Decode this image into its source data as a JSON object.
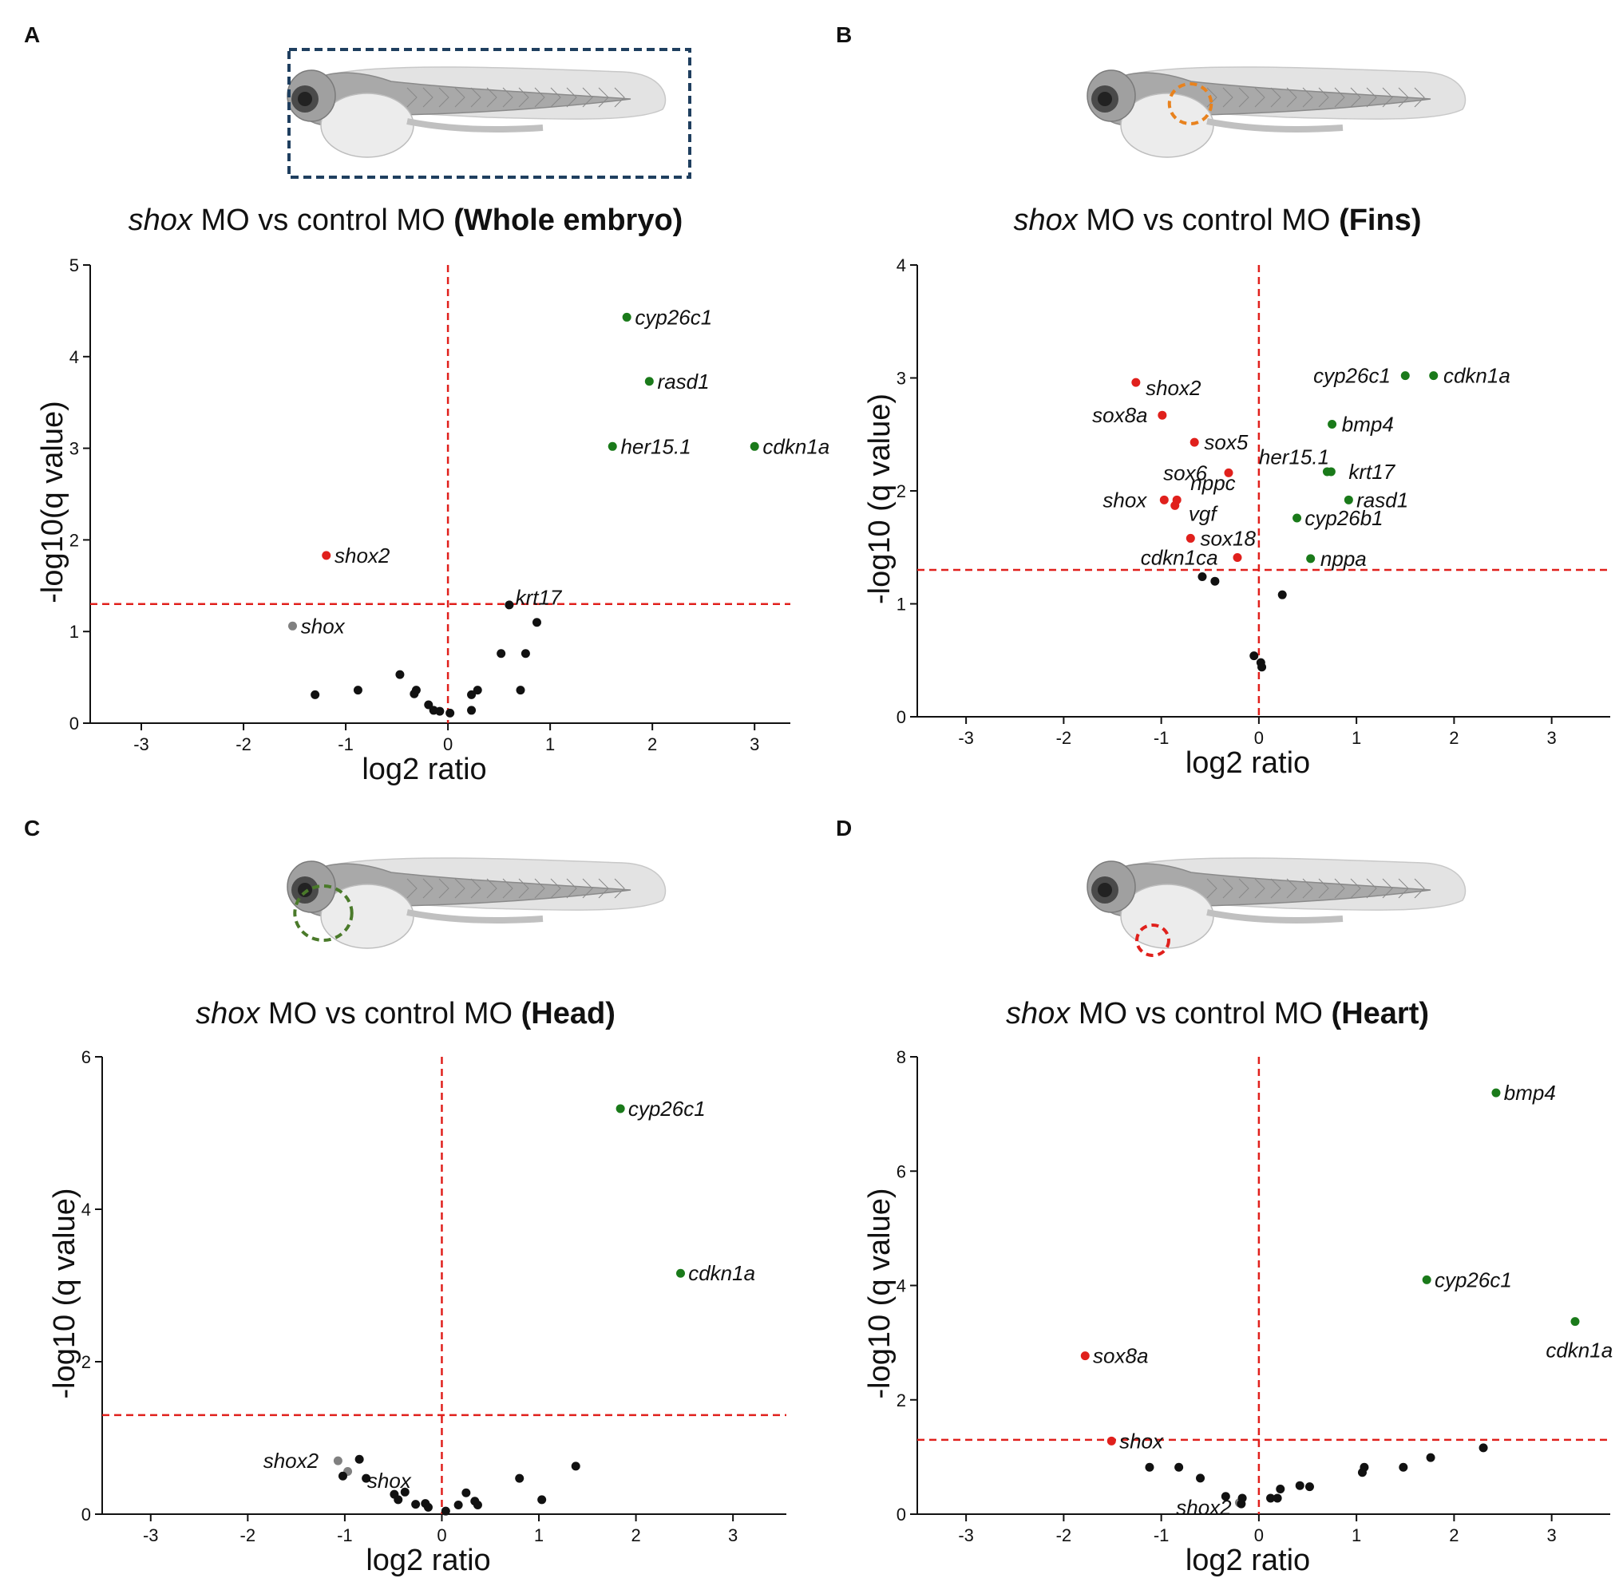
{
  "figure": {
    "colors": {
      "up": "#1a7a1a",
      "down": "#e0201c",
      "ns_highlight": "#808080",
      "ns": "#111111",
      "threshold": "#e0201c",
      "whole_marker": "#1f3f5f",
      "fins_marker": "#e8821e",
      "head_marker": "#4a7a2a",
      "heart_marker": "#e0201c"
    }
  },
  "chart_data": [
    {
      "panel": "A",
      "type": "scatter",
      "title_italic": "shox",
      "title_middle": " MO vs control MO ",
      "title_bold": "(Whole embryo)",
      "xlabel": "log2 ratio",
      "ylabel": "-log10(q value)",
      "xlim": [
        -3.5,
        3.35
      ],
      "ylim": [
        0,
        5
      ],
      "xticks": [
        -3,
        -2,
        -1,
        0,
        1,
        2,
        3
      ],
      "yticks": [
        0,
        1,
        2,
        3,
        4,
        5
      ],
      "threshold_y": 1.3,
      "threshold_x": 0,
      "points": [
        {
          "x": 1.75,
          "y": 4.43,
          "cls": "up",
          "label": "cyp26c1",
          "lx": 0.08,
          "ly": 0.0,
          "anchor": "start"
        },
        {
          "x": 1.97,
          "y": 3.73,
          "cls": "up",
          "label": "rasd1",
          "lx": 0.08,
          "ly": 0.0,
          "anchor": "start"
        },
        {
          "x": 1.61,
          "y": 3.02,
          "cls": "up",
          "label": "her15.1",
          "lx": 0.08,
          "ly": 0.0,
          "anchor": "start"
        },
        {
          "x": 3.0,
          "y": 3.02,
          "cls": "up",
          "label": "cdkn1a",
          "lx": 0.08,
          "ly": 0.0,
          "anchor": "start"
        },
        {
          "x": -1.19,
          "y": 1.83,
          "cls": "down",
          "label": "shox2",
          "lx": 0.08,
          "ly": 0.0,
          "anchor": "start"
        },
        {
          "x": -1.52,
          "y": 1.06,
          "cls": "ns_highlight",
          "label": "shox",
          "lx": 0.08,
          "ly": 0.0,
          "anchor": "start"
        },
        {
          "x": 0.6,
          "y": 1.29,
          "cls": "ns",
          "label": "krt17",
          "lx": 0.06,
          "ly": 0.08,
          "anchor": "start"
        },
        {
          "x": 0.87,
          "y": 1.1,
          "cls": "ns"
        },
        {
          "x": 0.52,
          "y": 0.76,
          "cls": "ns"
        },
        {
          "x": 0.76,
          "y": 0.76,
          "cls": "ns"
        },
        {
          "x": -0.47,
          "y": 0.53,
          "cls": "ns"
        },
        {
          "x": -0.88,
          "y": 0.36,
          "cls": "ns"
        },
        {
          "x": -1.3,
          "y": 0.31,
          "cls": "ns"
        },
        {
          "x": -0.31,
          "y": 0.36,
          "cls": "ns"
        },
        {
          "x": -0.33,
          "y": 0.32,
          "cls": "ns"
        },
        {
          "x": 0.29,
          "y": 0.36,
          "cls": "ns"
        },
        {
          "x": 0.23,
          "y": 0.31,
          "cls": "ns"
        },
        {
          "x": 0.71,
          "y": 0.36,
          "cls": "ns"
        },
        {
          "x": -0.19,
          "y": 0.2,
          "cls": "ns"
        },
        {
          "x": -0.14,
          "y": 0.14,
          "cls": "ns"
        },
        {
          "x": -0.08,
          "y": 0.13,
          "cls": "ns"
        },
        {
          "x": 0.02,
          "y": 0.11,
          "cls": "ns"
        },
        {
          "x": 0.23,
          "y": 0.14,
          "cls": "ns"
        }
      ]
    },
    {
      "panel": "B",
      "type": "scatter",
      "title_italic": "shox",
      "title_middle": " MO vs control MO ",
      "title_bold": "(Fins)",
      "xlabel": "log2 ratio",
      "ylabel": "-log10 (q value)",
      "xlim": [
        -3.5,
        3.6
      ],
      "ylim": [
        0,
        4
      ],
      "xticks": [
        -3,
        -2,
        -1,
        0,
        1,
        2,
        3
      ],
      "yticks": [
        0,
        1,
        2,
        3,
        4
      ],
      "threshold_y": 1.3,
      "threshold_x": 0,
      "points": [
        {
          "x": -1.26,
          "y": 2.96,
          "cls": "down",
          "label": "shox2",
          "lx": 0.1,
          "ly": -0.05,
          "anchor": "start"
        },
        {
          "x": -0.99,
          "y": 2.67,
          "cls": "down",
          "label": "sox8a",
          "lx": -0.15,
          "ly": 0.0,
          "anchor": "end"
        },
        {
          "x": -0.66,
          "y": 2.43,
          "cls": "down",
          "label": "sox5",
          "lx": 0.1,
          "ly": 0.0,
          "anchor": "start"
        },
        {
          "x": -0.31,
          "y": 2.16,
          "cls": "down",
          "label": "sox6",
          "lx": -0.22,
          "ly": 0.0,
          "anchor": "end"
        },
        {
          "x": -0.97,
          "y": 1.92,
          "cls": "down",
          "label": "shox",
          "lx": -0.18,
          "ly": 0.0,
          "anchor": "end"
        },
        {
          "x": -0.84,
          "y": 1.92,
          "cls": "down",
          "label": "nppc",
          "lx": 0.14,
          "ly": 0.15,
          "anchor": "start"
        },
        {
          "x": -0.86,
          "y": 1.87,
          "cls": "down",
          "label": "vgf",
          "lx": 0.14,
          "ly": -0.07,
          "anchor": "start"
        },
        {
          "x": -0.7,
          "y": 1.58,
          "cls": "down",
          "label": "sox18",
          "lx": 0.1,
          "ly": 0.0,
          "anchor": "start"
        },
        {
          "x": -0.22,
          "y": 1.41,
          "cls": "down",
          "label": "cdkn1ca",
          "lx": -0.2,
          "ly": 0.0,
          "anchor": "end"
        },
        {
          "x": 1.5,
          "y": 3.02,
          "cls": "up",
          "label": "cyp26c1",
          "lx": -0.15,
          "ly": 0.0,
          "anchor": "end"
        },
        {
          "x": 1.79,
          "y": 3.02,
          "cls": "up",
          "label": "cdkn1a",
          "lx": 0.1,
          "ly": 0.0,
          "anchor": "start"
        },
        {
          "x": 0.75,
          "y": 2.59,
          "cls": "up",
          "label": "bmp4",
          "lx": 0.1,
          "ly": 0.0,
          "anchor": "start"
        },
        {
          "x": 0.7,
          "y": 2.17,
          "cls": "up",
          "label": "her15.1",
          "lx": -0.7,
          "ly": 0.13,
          "anchor": "start"
        },
        {
          "x": 0.74,
          "y": 2.17,
          "cls": "up",
          "label": "krt17",
          "lx": 0.18,
          "ly": 0.0,
          "anchor": "start"
        },
        {
          "x": 0.92,
          "y": 1.92,
          "cls": "up",
          "label": "rasd1",
          "lx": 0.08,
          "ly": 0.0,
          "anchor": "start"
        },
        {
          "x": 0.39,
          "y": 1.76,
          "cls": "up",
          "label": "cyp26b1",
          "lx": 0.08,
          "ly": 0.0,
          "anchor": "start"
        },
        {
          "x": 0.53,
          "y": 1.4,
          "cls": "up",
          "label": "nppa",
          "lx": 0.1,
          "ly": 0.0,
          "anchor": "start"
        },
        {
          "x": -0.58,
          "y": 1.24,
          "cls": "ns"
        },
        {
          "x": -0.45,
          "y": 1.2,
          "cls": "ns"
        },
        {
          "x": 0.24,
          "y": 1.08,
          "cls": "ns"
        },
        {
          "x": -0.05,
          "y": 0.54,
          "cls": "ns"
        },
        {
          "x": 0.02,
          "y": 0.48,
          "cls": "ns"
        },
        {
          "x": 0.03,
          "y": 0.44,
          "cls": "ns"
        }
      ]
    },
    {
      "panel": "C",
      "type": "scatter",
      "title_italic": "shox",
      "title_middle": " MO vs control MO ",
      "title_bold": "(Head)",
      "xlabel": "log2 ratio",
      "ylabel": "-log10 (q value)",
      "xlim": [
        -3.5,
        3.55
      ],
      "ylim": [
        0,
        6
      ],
      "xticks": [
        -3,
        -2,
        -1,
        0,
        1,
        2,
        3
      ],
      "yticks": [
        0,
        2,
        4,
        6
      ],
      "threshold_y": 1.3,
      "threshold_x": 0,
      "points": [
        {
          "x": 1.84,
          "y": 5.32,
          "cls": "up",
          "label": "cyp26c1",
          "lx": 0.08,
          "ly": 0.0,
          "anchor": "start"
        },
        {
          "x": 2.46,
          "y": 3.16,
          "cls": "up",
          "label": "cdkn1a",
          "lx": 0.08,
          "ly": 0.0,
          "anchor": "start"
        },
        {
          "x": -1.07,
          "y": 0.7,
          "cls": "ns_highlight",
          "label": "shox2",
          "lx": -0.2,
          "ly": 0.0,
          "anchor": "end"
        },
        {
          "x": -0.97,
          "y": 0.56,
          "cls": "ns_highlight",
          "label": "shox",
          "lx": 0.2,
          "ly": -0.12,
          "anchor": "start"
        },
        {
          "x": -0.85,
          "y": 0.72,
          "cls": "ns"
        },
        {
          "x": -1.02,
          "y": 0.5,
          "cls": "ns"
        },
        {
          "x": -0.78,
          "y": 0.47,
          "cls": "ns"
        },
        {
          "x": -0.49,
          "y": 0.26,
          "cls": "ns"
        },
        {
          "x": -0.38,
          "y": 0.29,
          "cls": "ns"
        },
        {
          "x": -0.45,
          "y": 0.19,
          "cls": "ns"
        },
        {
          "x": -0.27,
          "y": 0.13,
          "cls": "ns"
        },
        {
          "x": -0.17,
          "y": 0.14,
          "cls": "ns"
        },
        {
          "x": -0.14,
          "y": 0.09,
          "cls": "ns"
        },
        {
          "x": 0.04,
          "y": 0.04,
          "cls": "ns"
        },
        {
          "x": 0.17,
          "y": 0.12,
          "cls": "ns"
        },
        {
          "x": 0.25,
          "y": 0.28,
          "cls": "ns"
        },
        {
          "x": 0.34,
          "y": 0.17,
          "cls": "ns"
        },
        {
          "x": 0.37,
          "y": 0.12,
          "cls": "ns"
        },
        {
          "x": 0.8,
          "y": 0.47,
          "cls": "ns"
        },
        {
          "x": 1.03,
          "y": 0.19,
          "cls": "ns"
        },
        {
          "x": 1.38,
          "y": 0.63,
          "cls": "ns"
        }
      ]
    },
    {
      "panel": "D",
      "type": "scatter",
      "title_italic": "shox",
      "title_middle": " MO vs control MO ",
      "title_bold": "(Heart)",
      "xlabel": "log2 ratio",
      "ylabel": "-log10 (q value)",
      "xlim": [
        -3.5,
        3.6
      ],
      "ylim": [
        0,
        8
      ],
      "xticks": [
        -3,
        -2,
        -1,
        0,
        1,
        2,
        3
      ],
      "yticks": [
        0,
        2,
        4,
        6,
        8
      ],
      "threshold_y": 1.3,
      "threshold_x": 0,
      "points": [
        {
          "x": 2.43,
          "y": 7.37,
          "cls": "up",
          "label": "bmp4",
          "lx": 0.08,
          "ly": 0.0,
          "anchor": "start"
        },
        {
          "x": 1.72,
          "y": 4.1,
          "cls": "up",
          "label": "cyp26c1",
          "lx": 0.08,
          "ly": 0.0,
          "anchor": "start"
        },
        {
          "x": 3.24,
          "y": 3.37,
          "cls": "up",
          "label": "cdkn1a",
          "lx": -0.3,
          "ly": -0.5,
          "anchor": "start"
        },
        {
          "x": -1.78,
          "y": 2.77,
          "cls": "down",
          "label": "sox8a",
          "lx": 0.08,
          "ly": 0.0,
          "anchor": "start"
        },
        {
          "x": -1.51,
          "y": 1.28,
          "cls": "down",
          "label": "shox",
          "lx": 0.08,
          "ly": 0.0,
          "anchor": "start"
        },
        {
          "x": -0.2,
          "y": 0.2,
          "cls": "ns_highlight",
          "label": "shox2",
          "lx": -0.08,
          "ly": -0.08,
          "anchor": "end"
        },
        {
          "x": -1.12,
          "y": 0.82,
          "cls": "ns"
        },
        {
          "x": -0.82,
          "y": 0.82,
          "cls": "ns"
        },
        {
          "x": -0.6,
          "y": 0.63,
          "cls": "ns"
        },
        {
          "x": -0.34,
          "y": 0.31,
          "cls": "ns"
        },
        {
          "x": -0.17,
          "y": 0.28,
          "cls": "ns"
        },
        {
          "x": -0.18,
          "y": 0.18,
          "cls": "ns"
        },
        {
          "x": 0.12,
          "y": 0.28,
          "cls": "ns"
        },
        {
          "x": 0.19,
          "y": 0.28,
          "cls": "ns"
        },
        {
          "x": 0.22,
          "y": 0.44,
          "cls": "ns"
        },
        {
          "x": 0.42,
          "y": 0.5,
          "cls": "ns"
        },
        {
          "x": 0.52,
          "y": 0.48,
          "cls": "ns"
        },
        {
          "x": 1.06,
          "y": 0.73,
          "cls": "ns"
        },
        {
          "x": 1.08,
          "y": 0.82,
          "cls": "ns"
        },
        {
          "x": 1.48,
          "y": 0.82,
          "cls": "ns"
        },
        {
          "x": 1.76,
          "y": 0.99,
          "cls": "ns"
        },
        {
          "x": 2.3,
          "y": 1.16,
          "cls": "ns"
        }
      ]
    }
  ]
}
